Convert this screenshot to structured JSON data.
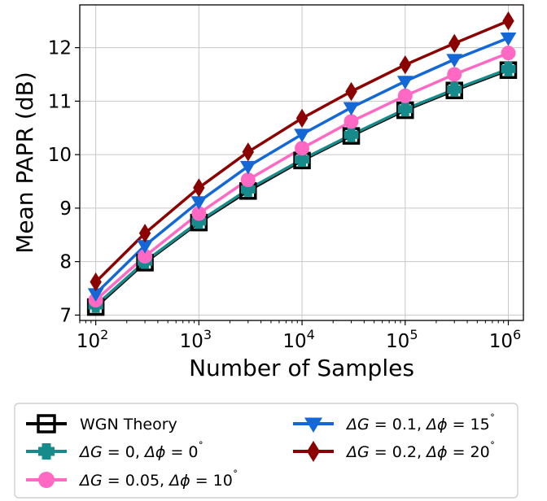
{
  "chart_data": {
    "type": "line",
    "xscale": "log",
    "xlabel": "Number of Samples",
    "ylabel": "Mean PAPR (dB)",
    "xlim": [
      70,
      1400000
    ],
    "ylim": [
      6.9,
      12.8
    ],
    "x": [
      100,
      300,
      1000,
      3000,
      10000,
      30000,
      100000,
      300000,
      1000000
    ],
    "x_ticks": [
      {
        "value": 100,
        "base": "10",
        "exp": "2"
      },
      {
        "value": 1000,
        "base": "10",
        "exp": "3"
      },
      {
        "value": 10000,
        "base": "10",
        "exp": "4"
      },
      {
        "value": 100000,
        "base": "10",
        "exp": "5"
      },
      {
        "value": 1000000,
        "base": "10",
        "exp": "6"
      }
    ],
    "y_ticks": [
      7,
      8,
      9,
      10,
      11,
      12
    ],
    "grid": true,
    "legend_position": "below",
    "series": [
      {
        "name": "WGN Theory",
        "label_parts": [
          "WGN Theory"
        ],
        "color": "#000000",
        "marker": "square",
        "values": [
          7.15,
          7.98,
          8.73,
          9.32,
          9.89,
          10.35,
          10.83,
          11.2,
          11.58
        ]
      },
      {
        "name": "ΔG = 0, Δϕ = 0˚",
        "label_parts": [
          "ΔG",
          " = 0, ",
          "Δϕ",
          " = 0",
          "˚"
        ],
        "color": "#178b8b",
        "marker": "plus",
        "values": [
          7.18,
          8.0,
          8.75,
          9.35,
          9.91,
          10.37,
          10.85,
          11.22,
          11.6
        ]
      },
      {
        "name": "ΔG = 0.05, Δϕ = 10˚",
        "label_parts": [
          "ΔG",
          " = 0.05, ",
          "Δϕ",
          " = 10",
          "˚"
        ],
        "color": "#ff69c4",
        "marker": "circle",
        "values": [
          7.28,
          8.1,
          8.9,
          9.53,
          10.12,
          10.62,
          11.1,
          11.5,
          11.9
        ]
      },
      {
        "name": "ΔG = 0.1, Δϕ = 15˚",
        "label_parts": [
          "ΔG",
          " = 0.1, ",
          "Δϕ",
          " = 15",
          "˚"
        ],
        "color": "#1468d6",
        "marker": "triangle-down",
        "values": [
          7.4,
          8.3,
          9.12,
          9.78,
          10.38,
          10.88,
          11.37,
          11.78,
          12.18
        ]
      },
      {
        "name": "ΔG = 0.2, Δϕ = 20˚",
        "label_parts": [
          "ΔG",
          " = 0.2, ",
          "Δϕ",
          " = 20",
          "˚"
        ],
        "color": "#8b0000",
        "marker": "diamond",
        "values": [
          7.62,
          8.53,
          9.38,
          10.05,
          10.68,
          11.18,
          11.68,
          12.08,
          12.5
        ]
      }
    ]
  }
}
